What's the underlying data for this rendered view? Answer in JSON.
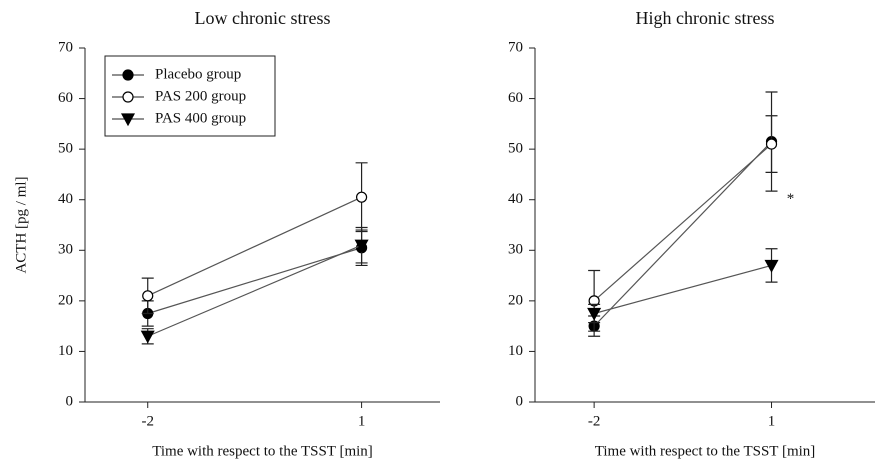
{
  "chart_data": [
    {
      "type": "line",
      "title": "Low chronic stress",
      "x_label": "Time with respect to the TSST [min]",
      "y_label": "ACTH [pg / ml]",
      "x": [
        -2,
        1
      ],
      "xlim": [
        -2.88,
        2.1
      ],
      "xticks": [
        -2,
        1
      ],
      "ylim": [
        0,
        70
      ],
      "yticks": [
        0,
        10,
        20,
        30,
        40,
        50,
        60,
        70
      ],
      "legend": "upper left",
      "series": [
        {
          "name": "Placebo group",
          "color": "#000000",
          "marker": "circle",
          "filled": true,
          "values": [
            17.5,
            30.5
          ],
          "errors": [
            2.5,
            3.5
          ]
        },
        {
          "name": "PAS 200 group",
          "color": "#000000",
          "marker": "circle",
          "filled": false,
          "values": [
            21,
            40.5
          ],
          "errors": [
            3.5,
            6.8
          ]
        },
        {
          "name": "PAS 400 group",
          "color": "#000000",
          "marker": "triangle-down",
          "filled": true,
          "values": [
            13,
            31
          ],
          "errors": [
            1.5,
            3.5
          ]
        }
      ]
    },
    {
      "type": "line",
      "title": "High chronic stress",
      "x_label": "Time with respect to the TSST [min]",
      "x": [
        -2,
        1
      ],
      "xlim": [
        -3.0,
        2.75
      ],
      "xticks": [
        -2,
        1
      ],
      "ylim": [
        0,
        70
      ],
      "yticks": [
        0,
        10,
        20,
        30,
        40,
        50,
        60,
        70
      ],
      "series": [
        {
          "color": "#000000",
          "marker": "circle",
          "filled": true,
          "values": [
            15,
            51.5
          ],
          "errors": [
            2,
            9.8
          ]
        },
        {
          "color": "#000000",
          "marker": "circle",
          "filled": false,
          "values": [
            20,
            51
          ],
          "errors": [
            6,
            5.6
          ]
        },
        {
          "color": "#000000",
          "marker": "triangle-down",
          "filled": true,
          "values": [
            17.5,
            27
          ],
          "errors": [
            1.8,
            3.3
          ]
        }
      ],
      "annotations": [
        {
          "text": "*",
          "x": 1.32,
          "y": 40
        }
      ]
    }
  ]
}
